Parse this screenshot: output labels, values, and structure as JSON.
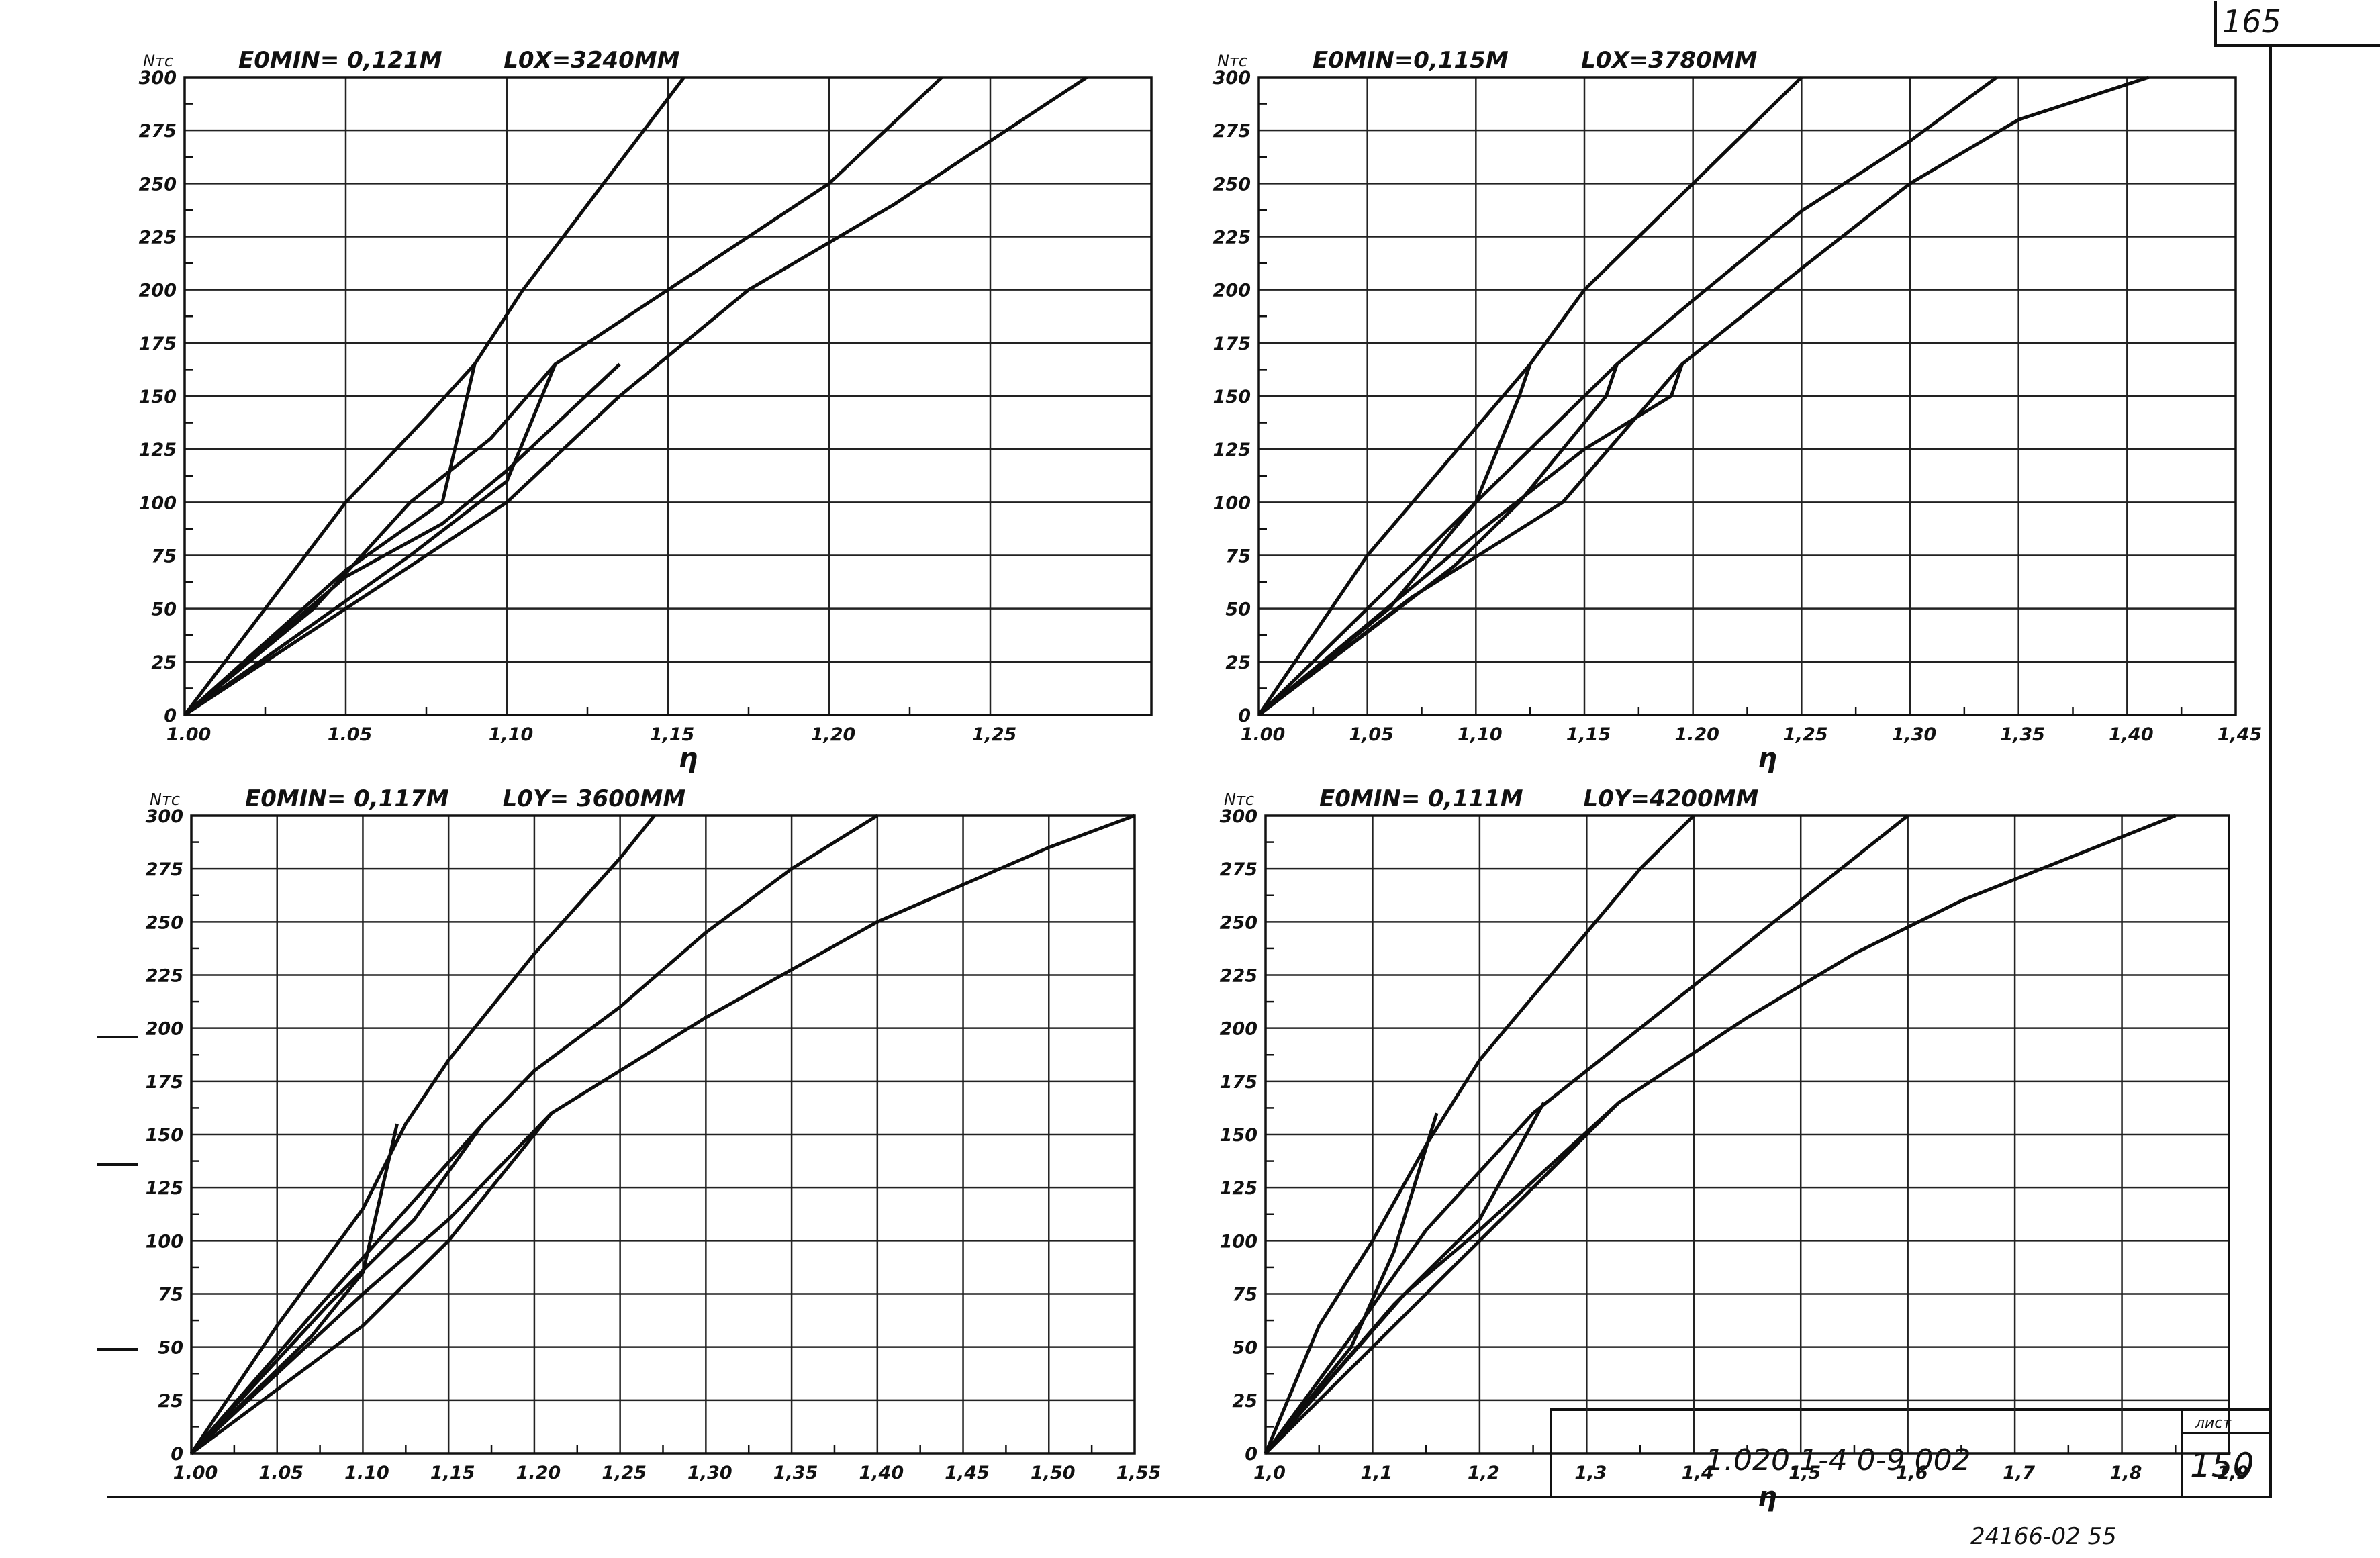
{
  "page_number": "165",
  "title_block": {
    "code": "1.020.1-4 0-9 002",
    "sheet_label": "лист",
    "sheet_number": "150",
    "archive_number": "24166-02 55"
  },
  "colors": {
    "ink": "#111111",
    "paper": "#ffffff"
  },
  "chart_data": [
    {
      "type": "line",
      "y_unit": "Nтс",
      "emin_label": "E0MIN= 0,121M",
      "length_label": "L0X=3240MM",
      "x_label": "η",
      "x_ticks": [
        1.0,
        1.05,
        1.1,
        1.15,
        1.2,
        1.25
      ],
      "x_tick_labels": [
        "1.00",
        "1.05",
        "1,10",
        "1,15",
        "1,20",
        "1,25"
      ],
      "xlim": [
        1.0,
        1.3
      ],
      "y_ticks": [
        0,
        25,
        50,
        75,
        100,
        125,
        150,
        175,
        200,
        225,
        250,
        275,
        300
      ],
      "y_tick_labels": [
        "0",
        "25",
        "50",
        "75",
        "100",
        "125",
        "150",
        "175",
        "200",
        "225",
        "250",
        "275",
        "300"
      ],
      "ylim": [
        0,
        300
      ],
      "grid": true,
      "series": [
        {
          "points": [
            [
              1.0,
              0
            ],
            [
              1.025,
              50
            ],
            [
              1.05,
              100
            ],
            [
              1.075,
              140
            ],
            [
              1.09,
              165
            ],
            [
              1.105,
              200
            ],
            [
              1.13,
              250
            ],
            [
              1.155,
              300
            ]
          ]
        },
        {
          "points": [
            [
              1.0,
              0
            ],
            [
              1.04,
              50
            ],
            [
              1.07,
              100
            ],
            [
              1.095,
              130
            ],
            [
              1.115,
              165
            ],
            [
              1.15,
              200
            ],
            [
              1.2,
              250
            ],
            [
              1.235,
              300
            ]
          ]
        },
        {
          "points": [
            [
              1.0,
              0
            ],
            [
              1.05,
              50
            ],
            [
              1.1,
              100
            ],
            [
              1.135,
              150
            ],
            [
              1.175,
              200
            ],
            [
              1.22,
              240
            ],
            [
              1.28,
              300
            ]
          ]
        },
        {
          "points": [
            [
              1.0,
              0
            ],
            [
              1.05,
              68
            ],
            [
              1.08,
              100
            ],
            [
              1.09,
              165
            ]
          ]
        },
        {
          "points": [
            [
              1.0,
              0
            ],
            [
              1.07,
              75
            ],
            [
              1.1,
              110
            ],
            [
              1.115,
              165
            ]
          ]
        },
        {
          "points": [
            [
              1.0,
              0
            ],
            [
              1.05,
              65
            ],
            [
              1.08,
              90
            ],
            [
              1.1,
              115
            ],
            [
              1.135,
              165
            ]
          ]
        }
      ]
    },
    {
      "type": "line",
      "y_unit": "Nтс",
      "emin_label": "E0MIN=0,115M",
      "length_label": "L0X=3780MM",
      "x_label": "η",
      "x_ticks": [
        1.0,
        1.05,
        1.1,
        1.15,
        1.2,
        1.25,
        1.3,
        1.35,
        1.4,
        1.45
      ],
      "x_tick_labels": [
        "1.00",
        "1,05",
        "1,10",
        "1,15",
        "1.20",
        "1,25",
        "1,30",
        "1,35",
        "1,40",
        "1,45"
      ],
      "xlim": [
        1.0,
        1.45
      ],
      "y_ticks": [
        0,
        25,
        50,
        75,
        100,
        125,
        150,
        175,
        200,
        225,
        250,
        275,
        300
      ],
      "y_tick_labels": [
        "0",
        "25",
        "50",
        "75",
        "100",
        "125",
        "150",
        "175",
        "200",
        "225",
        "250",
        "275",
        "300"
      ],
      "ylim": [
        0,
        300
      ],
      "grid": true,
      "series": [
        {
          "points": [
            [
              1.0,
              0
            ],
            [
              1.05,
              75
            ],
            [
              1.1,
              135
            ],
            [
              1.125,
              165
            ],
            [
              1.15,
              200
            ],
            [
              1.2,
              250
            ],
            [
              1.25,
              300
            ]
          ]
        },
        {
          "points": [
            [
              1.0,
              0
            ],
            [
              1.06,
              60
            ],
            [
              1.1,
              100
            ],
            [
              1.165,
              165
            ],
            [
              1.2,
              195
            ],
            [
              1.25,
              237
            ],
            [
              1.3,
              270
            ],
            [
              1.34,
              300
            ]
          ]
        },
        {
          "points": [
            [
              1.0,
              0
            ],
            [
              1.07,
              55
            ],
            [
              1.14,
              100
            ],
            [
              1.195,
              165
            ],
            [
              1.25,
              210
            ],
            [
              1.3,
              250
            ],
            [
              1.35,
              280
            ],
            [
              1.41,
              300
            ]
          ]
        },
        {
          "points": [
            [
              1.0,
              0
            ],
            [
              1.06,
              50
            ],
            [
              1.1,
              100
            ],
            [
              1.12,
              150
            ],
            [
              1.125,
              165
            ]
          ]
        },
        {
          "points": [
            [
              1.0,
              0
            ],
            [
              1.09,
              70
            ],
            [
              1.12,
              100
            ],
            [
              1.16,
              150
            ],
            [
              1.165,
              165
            ]
          ]
        },
        {
          "points": [
            [
              1.0,
              0
            ],
            [
              1.1,
              85
            ],
            [
              1.15,
              125
            ],
            [
              1.19,
              150
            ],
            [
              1.195,
              165
            ]
          ]
        }
      ]
    },
    {
      "type": "line",
      "y_unit": "Nтс",
      "emin_label": "E0MIN= 0,117M",
      "length_label": "L0Y= 3600MM",
      "x_label": "",
      "x_ticks": [
        1.0,
        1.05,
        1.1,
        1.15,
        1.2,
        1.25,
        1.3,
        1.35,
        1.4,
        1.45,
        1.5,
        1.55
      ],
      "x_tick_labels": [
        "1.00",
        "1.05",
        "1.10",
        "1,15",
        "1.20",
        "1,25",
        "1,30",
        "1,35",
        "1,40",
        "1,45",
        "1,50",
        "1,55"
      ],
      "xlim": [
        1.0,
        1.55
      ],
      "y_ticks": [
        0,
        25,
        50,
        75,
        100,
        125,
        150,
        175,
        200,
        225,
        250,
        275,
        300
      ],
      "y_tick_labels": [
        "0",
        "25",
        "50",
        "75",
        "100",
        "125",
        "150",
        "175",
        "200",
        "225",
        "250",
        "275",
        "300"
      ],
      "ylim": [
        0,
        300
      ],
      "grid": true,
      "series": [
        {
          "points": [
            [
              1.0,
              0
            ],
            [
              1.05,
              60
            ],
            [
              1.1,
              115
            ],
            [
              1.125,
              155
            ],
            [
              1.15,
              185
            ],
            [
              1.2,
              235
            ],
            [
              1.25,
              280
            ],
            [
              1.27,
              300
            ]
          ]
        },
        {
          "points": [
            [
              1.0,
              0
            ],
            [
              1.07,
              65
            ],
            [
              1.12,
              110
            ],
            [
              1.17,
              155
            ],
            [
              1.2,
              180
            ],
            [
              1.25,
              210
            ],
            [
              1.3,
              245
            ],
            [
              1.35,
              275
            ],
            [
              1.4,
              300
            ]
          ]
        },
        {
          "points": [
            [
              1.0,
              0
            ],
            [
              1.1,
              60
            ],
            [
              1.15,
              100
            ],
            [
              1.21,
              160
            ],
            [
              1.25,
              180
            ],
            [
              1.3,
              205
            ],
            [
              1.4,
              250
            ],
            [
              1.5,
              285
            ],
            [
              1.55,
              300
            ]
          ]
        },
        {
          "points": [
            [
              1.0,
              0
            ],
            [
              1.07,
              55
            ],
            [
              1.1,
              85
            ],
            [
              1.12,
              155
            ]
          ]
        },
        {
          "points": [
            [
              1.0,
              0
            ],
            [
              1.08,
              70
            ],
            [
              1.13,
              110
            ],
            [
              1.17,
              155
            ]
          ]
        },
        {
          "points": [
            [
              1.0,
              0
            ],
            [
              1.1,
              75
            ],
            [
              1.15,
              110
            ],
            [
              1.21,
              160
            ]
          ]
        }
      ]
    },
    {
      "type": "line",
      "y_unit": "Nтс",
      "emin_label": "E0MIN= 0,111M",
      "length_label": "L0Y=4200MM",
      "x_label": "η",
      "x_ticks": [
        1.0,
        1.1,
        1.2,
        1.3,
        1.4,
        1.5,
        1.6,
        1.7,
        1.8,
        1.9
      ],
      "x_tick_labels": [
        "1,0",
        "1,1",
        "1,2",
        "1,3",
        "1,4",
        "1,5",
        "1,6",
        "1,7",
        "1,8",
        "1,9"
      ],
      "xlim": [
        1.0,
        1.9
      ],
      "y_ticks": [
        0,
        25,
        50,
        75,
        100,
        125,
        150,
        175,
        200,
        225,
        250,
        275,
        300
      ],
      "y_tick_labels": [
        "0",
        "25",
        "50",
        "75",
        "100",
        "125",
        "150",
        "175",
        "200",
        "225",
        "250",
        "275",
        "300"
      ],
      "ylim": [
        0,
        300
      ],
      "grid": true,
      "series": [
        {
          "points": [
            [
              1.0,
              0
            ],
            [
              1.05,
              60
            ],
            [
              1.1,
              100
            ],
            [
              1.15,
              145
            ],
            [
              1.2,
              185
            ],
            [
              1.25,
              215
            ],
            [
              1.3,
              245
            ],
            [
              1.35,
              275
            ],
            [
              1.4,
              300
            ]
          ]
        },
        {
          "points": [
            [
              1.0,
              0
            ],
            [
              1.08,
              55
            ],
            [
              1.15,
              105
            ],
            [
              1.25,
              160
            ],
            [
              1.3,
              180
            ],
            [
              1.4,
              220
            ],
            [
              1.5,
              260
            ],
            [
              1.6,
              300
            ]
          ]
        },
        {
          "points": [
            [
              1.0,
              0
            ],
            [
              1.1,
              50
            ],
            [
              1.2,
              100
            ],
            [
              1.33,
              165
            ],
            [
              1.45,
              205
            ],
            [
              1.55,
              235
            ],
            [
              1.65,
              260
            ],
            [
              1.75,
              280
            ],
            [
              1.85,
              300
            ]
          ]
        },
        {
          "points": [
            [
              1.0,
              0
            ],
            [
              1.08,
              50
            ],
            [
              1.12,
              95
            ],
            [
              1.16,
              160
            ]
          ]
        },
        {
          "points": [
            [
              1.0,
              0
            ],
            [
              1.12,
              70
            ],
            [
              1.2,
              110
            ],
            [
              1.26,
              165
            ]
          ]
        },
        {
          "points": [
            [
              1.0,
              0
            ],
            [
              1.13,
              75
            ],
            [
              1.2,
              105
            ],
            [
              1.33,
              165
            ]
          ]
        }
      ]
    }
  ]
}
